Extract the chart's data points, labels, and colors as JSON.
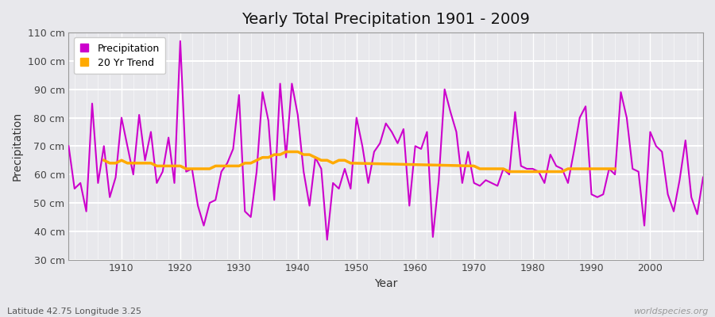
{
  "title": "Yearly Total Precipitation 1901 - 2009",
  "xlabel": "Year",
  "ylabel": "Precipitation",
  "subtitle": "Latitude 42.75 Longitude 3.25",
  "watermark": "worldspecies.org",
  "ylim": [
    30,
    110
  ],
  "line_color": "#cc00cc",
  "trend_color": "#ffaa00",
  "bg_color": "#e8e8ec",
  "years": [
    1901,
    1902,
    1903,
    1904,
    1905,
    1906,
    1907,
    1908,
    1909,
    1910,
    1911,
    1912,
    1913,
    1914,
    1915,
    1916,
    1917,
    1918,
    1919,
    1920,
    1921,
    1922,
    1923,
    1924,
    1925,
    1926,
    1927,
    1928,
    1929,
    1930,
    1931,
    1932,
    1933,
    1934,
    1935,
    1936,
    1937,
    1938,
    1939,
    1940,
    1941,
    1942,
    1943,
    1944,
    1945,
    1946,
    1947,
    1948,
    1949,
    1950,
    1951,
    1952,
    1953,
    1954,
    1955,
    1956,
    1957,
    1958,
    1959,
    1960,
    1961,
    1962,
    1963,
    1964,
    1965,
    1966,
    1967,
    1968,
    1969,
    1970,
    1971,
    1972,
    1973,
    1974,
    1975,
    1976,
    1977,
    1978,
    1979,
    1980,
    1981,
    1982,
    1983,
    1984,
    1985,
    1986,
    1987,
    1988,
    1989,
    1990,
    1991,
    1992,
    1993,
    1994,
    1995,
    1996,
    1997,
    1998,
    1999,
    2000,
    2001,
    2002,
    2003,
    2004,
    2005,
    2006,
    2007,
    2008,
    2009
  ],
  "precip": [
    70,
    55,
    57,
    47,
    85,
    57,
    70,
    52,
    59,
    80,
    70,
    60,
    81,
    65,
    75,
    57,
    61,
    73,
    57,
    107,
    61,
    62,
    49,
    42,
    50,
    51,
    61,
    64,
    69,
    88,
    47,
    45,
    61,
    89,
    79,
    51,
    92,
    66,
    92,
    81,
    61,
    49,
    66,
    62,
    37,
    57,
    55,
    62,
    55,
    80,
    70,
    57,
    68,
    71,
    78,
    75,
    71,
    76,
    49,
    70,
    69,
    75,
    38,
    58,
    90,
    82,
    75,
    57,
    68,
    57,
    56,
    58,
    57,
    56,
    62,
    60,
    82,
    63,
    62,
    62,
    61,
    57,
    67,
    63,
    62,
    57,
    68,
    80,
    84,
    53,
    52,
    53,
    62,
    60,
    89,
    80,
    62,
    61,
    42,
    75,
    70,
    68,
    53,
    47,
    58,
    72,
    52,
    46,
    59
  ],
  "trend_years": [
    1907,
    1908,
    1909,
    1910,
    1911,
    1912,
    1913,
    1914,
    1915,
    1916,
    1917,
    1918,
    1919,
    1920,
    1921,
    1922,
    1923,
    1924,
    1925,
    1926,
    1927,
    1928,
    1929,
    1930,
    1931,
    1932,
    1933,
    1934,
    1935,
    1936,
    1937,
    1938,
    1939,
    1940,
    1941,
    1942,
    1943,
    1944,
    1945,
    1946,
    1947,
    1948,
    1949,
    1970,
    1971,
    1972,
    1973,
    1974,
    1975,
    1976,
    1977,
    1978,
    1979,
    1980,
    1981,
    1982,
    1983,
    1984,
    1985,
    1986,
    1987,
    1988,
    1989,
    1990,
    1991,
    1992,
    1993,
    1994
  ],
  "trend_vals": [
    65,
    64,
    64,
    65,
    64,
    64,
    64,
    64,
    64,
    63,
    63,
    63,
    63,
    63,
    62,
    62,
    62,
    62,
    62,
    63,
    63,
    63,
    63,
    63,
    64,
    64,
    65,
    66,
    66,
    67,
    67,
    68,
    68,
    68,
    67,
    67,
    66,
    65,
    65,
    64,
    65,
    65,
    64,
    63,
    62,
    62,
    62,
    62,
    62,
    61,
    61,
    61,
    61,
    61,
    61,
    61,
    61,
    61,
    61,
    62,
    62,
    62,
    62,
    62,
    62,
    62,
    62,
    62
  ]
}
